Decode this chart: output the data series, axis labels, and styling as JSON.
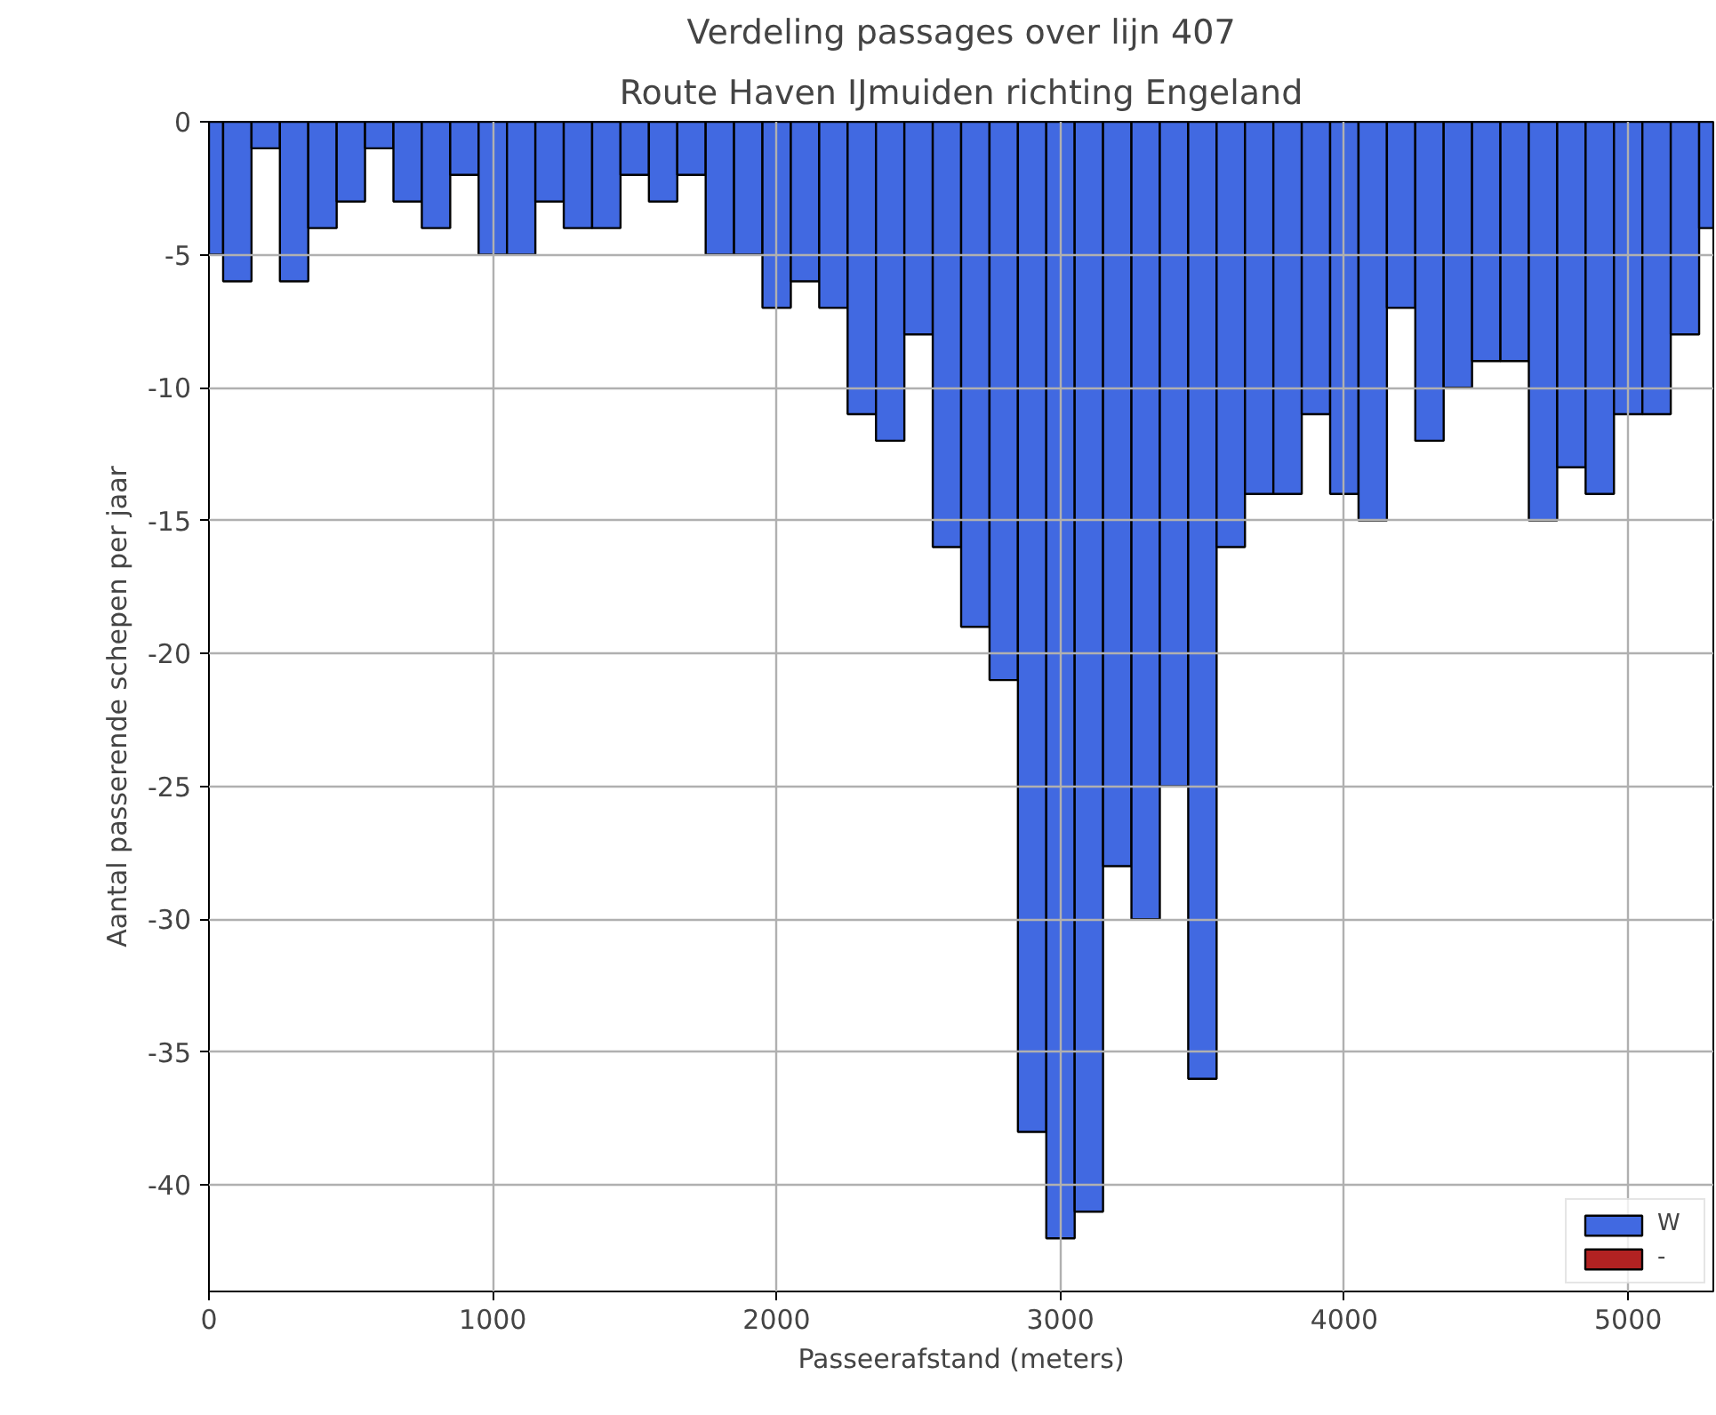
{
  "chart_data": {
    "type": "bar",
    "title": "Verdeling passages over lijn 407",
    "subtitle": "Route Haven IJmuiden richting Engeland",
    "xlabel": "Passeerafstand (meters)",
    "ylabel": "Aantal passerende schepen per jaar",
    "x": [
      0,
      100,
      200,
      300,
      400,
      500,
      600,
      700,
      800,
      900,
      1000,
      1100,
      1200,
      1300,
      1400,
      1500,
      1600,
      1700,
      1800,
      1900,
      2000,
      2100,
      2200,
      2300,
      2400,
      2500,
      2600,
      2700,
      2800,
      2900,
      3000,
      3100,
      3200,
      3300,
      3400,
      3500,
      3600,
      3700,
      3800,
      3900,
      4000,
      4100,
      4200,
      4300,
      4400,
      4500,
      4600,
      4700,
      4800,
      4900,
      5000,
      5100,
      5200,
      5300
    ],
    "series": [
      {
        "name": "W",
        "color": "#4169e1",
        "values": [
          -5,
          -6,
          -1,
          -6,
          -4,
          -3,
          -1,
          -3,
          -4,
          -2,
          -5,
          -5,
          -3,
          -4,
          -4,
          -2,
          -3,
          -2,
          -5,
          -5,
          -7,
          -6,
          -7,
          -11,
          -12,
          -8,
          -16,
          -19,
          -21,
          -38,
          -42,
          -41,
          -28,
          -30,
          -25,
          -36,
          -16,
          -14,
          -14,
          -11,
          -14,
          -15,
          -7,
          -12,
          -10,
          -9,
          -9,
          -15,
          -13,
          -14,
          -11,
          -11,
          -8,
          -4
        ]
      },
      {
        "name": "-",
        "color": "#b22222",
        "values": [
          null,
          null,
          null,
          null,
          null,
          null,
          null,
          null,
          null,
          null,
          null,
          null,
          null,
          null,
          null,
          null,
          null,
          null,
          null,
          null,
          null,
          null,
          null,
          null,
          null,
          null,
          null,
          null,
          null,
          null,
          null,
          null,
          null,
          null,
          null,
          null,
          null,
          null,
          null,
          null,
          null,
          null,
          null,
          null,
          null,
          null,
          null,
          null,
          null,
          null,
          null,
          null,
          null,
          null
        ]
      }
    ],
    "xlim": [
      0,
      5300
    ],
    "ylim": [
      -44,
      0
    ],
    "xticks": [
      0,
      1000,
      2000,
      3000,
      4000,
      5000
    ],
    "yticks": [
      0,
      -5,
      -10,
      -15,
      -20,
      -25,
      -30,
      -35,
      -40
    ],
    "grid": true,
    "legend": "bottom right"
  }
}
